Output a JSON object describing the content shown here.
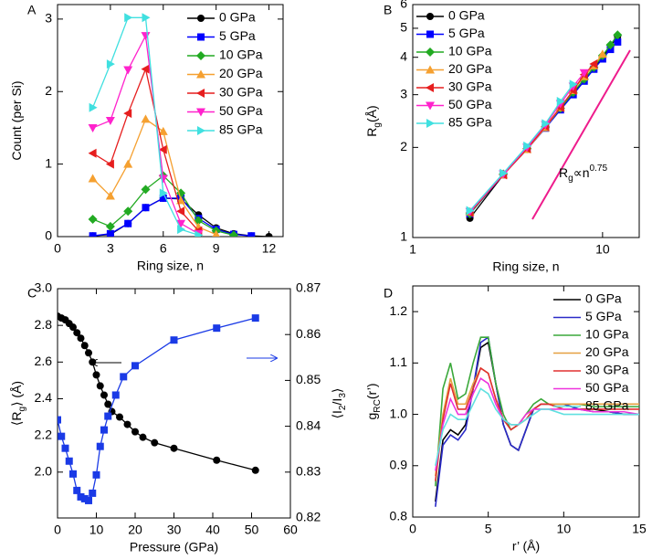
{
  "chart_data": [
    {
      "type": "line",
      "title": "A",
      "xlabel": "Ring size, n",
      "ylabel": [
        {
          "text": "Count (per Si)"
        }
      ],
      "xlim": [
        0,
        12.8
      ],
      "xticks": [
        0,
        3,
        6,
        9,
        12
      ],
      "ylim": [
        0,
        3.2
      ],
      "yticks": [
        0,
        1,
        2,
        3
      ],
      "legend": "upper right",
      "x": [
        2,
        3,
        4,
        5,
        6,
        7,
        8,
        9,
        10,
        11,
        12
      ],
      "series": [
        {
          "name": "0 GPa",
          "color": "#000000",
          "marker": "circle",
          "values": [
            0.01,
            0.03,
            0.18,
            0.4,
            0.53,
            0.52,
            0.3,
            0.12,
            0.04,
            0.01,
            0.0
          ]
        },
        {
          "name": "5 GPa",
          "color": "#0000ff",
          "marker": "square",
          "values": [
            0.01,
            0.04,
            0.18,
            0.4,
            0.53,
            0.53,
            0.25,
            0.1,
            0.03,
            0.01,
            null
          ]
        },
        {
          "name": "10 GPa",
          "color": "#22aa22",
          "marker": "diamond",
          "values": [
            0.24,
            0.14,
            0.35,
            0.65,
            0.84,
            0.6,
            0.22,
            0.08,
            0.02,
            null,
            null
          ]
        },
        {
          "name": "20 GPa",
          "color": "#f5a030",
          "marker": "tri-up",
          "values": [
            0.8,
            0.56,
            1.0,
            1.62,
            1.45,
            0.5,
            0.13,
            0.03,
            null,
            null,
            null
          ]
        },
        {
          "name": "30 GPa",
          "color": "#e61e1e",
          "marker": "tri-left",
          "values": [
            1.15,
            1.0,
            1.7,
            2.31,
            1.2,
            0.35,
            0.08,
            null,
            null,
            null,
            null
          ]
        },
        {
          "name": "50 GPa",
          "color": "#ff22cc",
          "marker": "tri-down",
          "values": [
            1.5,
            1.6,
            2.3,
            2.77,
            0.8,
            0.18,
            0.04,
            null,
            null,
            null,
            null
          ]
        },
        {
          "name": "85 GPa",
          "color": "#40e0e0",
          "marker": "tri-right",
          "values": [
            1.78,
            2.38,
            3.02,
            3.02,
            0.6,
            0.1,
            0.02,
            null,
            null,
            null,
            null
          ]
        }
      ]
    },
    {
      "type": "line",
      "title": "B",
      "xlabel": "Ring size, n",
      "ylabel": [
        {
          "text": "R"
        },
        {
          "text": "g",
          "shift": "sub"
        },
        {
          "text": "(Å)"
        }
      ],
      "xscale": "log",
      "yscale": "log",
      "xlim": [
        1,
        15.6
      ],
      "xticks": [
        1,
        10
      ],
      "ylim": [
        1,
        6
      ],
      "yticks": [
        1,
        2,
        3,
        4,
        5,
        6
      ],
      "legend": "upper left",
      "annotation": [
        {
          "text": "R"
        },
        {
          "text": "g",
          "shift": "sub"
        },
        {
          "text": "∝n"
        },
        {
          "text": "0.75",
          "shift": "super"
        }
      ],
      "annotation_color": "#ee1c8c",
      "x": [
        2,
        3,
        4,
        5,
        6,
        7,
        8,
        9,
        10,
        11,
        12
      ],
      "series": [
        {
          "name": "0 GPa",
          "color": "#000000",
          "marker": "circle",
          "values": [
            1.16,
            1.62,
            1.98,
            2.33,
            2.68,
            3.02,
            3.35,
            3.68,
            4.0,
            4.35,
            4.7
          ]
        },
        {
          "name": "5 GPa",
          "color": "#0000ff",
          "marker": "square",
          "values": [
            1.2,
            1.62,
            1.97,
            2.32,
            2.67,
            3.0,
            3.33,
            3.65,
            3.95,
            4.25,
            4.5
          ]
        },
        {
          "name": "10 GPa",
          "color": "#22aa22",
          "marker": "diamond",
          "values": [
            1.2,
            1.63,
            1.98,
            2.34,
            2.7,
            3.05,
            3.38,
            3.7,
            4.05,
            4.4,
            4.75
          ]
        },
        {
          "name": "20 GPa",
          "color": "#f5a030",
          "marker": "tri-up",
          "values": [
            1.22,
            1.62,
            1.97,
            2.33,
            2.72,
            3.1,
            3.45,
            3.75,
            4.1,
            null,
            null
          ]
        },
        {
          "name": "30 GPa",
          "color": "#e61e1e",
          "marker": "tri-left",
          "values": [
            1.21,
            1.62,
            1.98,
            2.35,
            2.72,
            3.1,
            3.5,
            3.8,
            null,
            null,
            null
          ]
        },
        {
          "name": "50 GPa",
          "color": "#ff22cc",
          "marker": "tri-down",
          "values": [
            1.22,
            1.63,
            2.0,
            2.38,
            2.8,
            3.2,
            3.55,
            null,
            null,
            null,
            null
          ]
        },
        {
          "name": "85 GPa",
          "color": "#40e0e0",
          "marker": "tri-right",
          "values": [
            1.23,
            1.64,
            2.02,
            2.4,
            2.85,
            3.25,
            null,
            null,
            null,
            null,
            null
          ]
        }
      ]
    },
    {
      "type": "line",
      "title": "C",
      "xlabel": "Pressure (GPa)",
      "ylabel": [
        {
          "text": "⟨R"
        },
        {
          "text": "g",
          "shift": "sub"
        },
        {
          "text": "⟩ (Å)"
        }
      ],
      "y2label": [
        {
          "text": "⟨I"
        },
        {
          "text": "2",
          "shift": "sub"
        },
        {
          "text": "/I"
        },
        {
          "text": "3",
          "shift": "sub"
        },
        {
          "text": "⟩"
        }
      ],
      "xlim": [
        0,
        60
      ],
      "xticks": [
        0,
        10,
        20,
        30,
        40,
        50,
        60
      ],
      "ylim": [
        1.75,
        3.0
      ],
      "yticks": [
        {
          "value": 2,
          "label": "2.0"
        },
        2.2,
        2.4,
        2.6,
        2.8,
        {
          "value": 3,
          "label": "3.0"
        }
      ],
      "y2lim": [
        0.82,
        0.87
      ],
      "y2ticks": [
        0.82,
        0.83,
        0.84,
        0.85,
        0.86,
        0.87
      ],
      "series": [
        {
          "color": "#000000",
          "marker": "circle",
          "x": [
            0,
            1,
            2,
            3,
            4,
            5,
            6,
            7,
            8,
            9,
            10,
            11,
            12,
            13,
            14,
            16,
            18,
            20,
            22,
            25,
            30,
            41,
            51
          ],
          "values": [
            2.85,
            2.84,
            2.83,
            2.81,
            2.79,
            2.76,
            2.73,
            2.69,
            2.65,
            2.6,
            2.53,
            2.47,
            2.42,
            2.37,
            2.33,
            2.3,
            2.26,
            2.22,
            2.19,
            2.16,
            2.13,
            2.065,
            2.01
          ]
        },
        {
          "color": "#1a3ae6",
          "marker": "square",
          "axis": "y2",
          "x": [
            0,
            1,
            2,
            3,
            4,
            5,
            6,
            7,
            8,
            9,
            10,
            11,
            12,
            13,
            15,
            17,
            20,
            30,
            41,
            51
          ],
          "values": [
            0.8414,
            0.8378,
            0.8352,
            0.8324,
            0.8296,
            0.826,
            0.8246,
            0.8242,
            0.8238,
            0.8254,
            0.8294,
            0.8356,
            0.8392,
            0.8422,
            0.8468,
            0.8508,
            0.8532,
            0.8588,
            0.8614,
            0.8636
          ]
        }
      ]
    },
    {
      "type": "line",
      "title": "D",
      "xlabel": "r’ (Å)",
      "ylabel": [
        {
          "text": "g"
        },
        {
          "text": "RC",
          "shift": "sub"
        },
        {
          "text": "(r’)"
        }
      ],
      "xlim": [
        0,
        15
      ],
      "xticks": [
        0,
        5,
        10,
        15
      ],
      "ylim": [
        0.8,
        1.25
      ],
      "yticks": [
        0.8,
        0.9,
        {
          "value": 1,
          "label": "1.0"
        },
        1.1,
        1.2
      ],
      "legend": "upper right",
      "x": [
        1.5,
        2,
        2.5,
        3,
        3.5,
        4,
        4.5,
        5,
        5.5,
        6,
        6.5,
        7,
        7.5,
        8,
        8.5,
        9,
        10,
        11,
        12,
        13,
        14,
        15
      ],
      "series": [
        {
          "name": "0 GPa",
          "color": "#000000",
          "values": [
            0.83,
            0.95,
            0.97,
            0.96,
            0.98,
            1.05,
            1.13,
            1.14,
            1.06,
            0.98,
            0.94,
            0.93,
            0.97,
            1.01,
            1.02,
            1.02,
            1.02,
            1.01,
            1.01,
            1.005,
            1.0,
            1.0
          ]
        },
        {
          "name": "5 GPa",
          "color": "#2a2ac8",
          "values": [
            0.82,
            0.94,
            0.96,
            0.95,
            0.97,
            1.05,
            1.14,
            1.15,
            1.06,
            0.98,
            0.94,
            0.93,
            0.97,
            1.01,
            1.02,
            1.02,
            1.02,
            1.01,
            1.005,
            1.005,
            1.0,
            1.0
          ]
        },
        {
          "name": "10 GPa",
          "color": "#3aa83a",
          "values": [
            0.86,
            1.05,
            1.1,
            1.03,
            1.04,
            1.1,
            1.15,
            1.15,
            1.06,
            1.0,
            0.97,
            0.98,
            1.0,
            1.02,
            1.03,
            1.02,
            1.02,
            1.02,
            1.015,
            1.015,
            1.015,
            1.015
          ]
        },
        {
          "name": "20 GPa",
          "color": "#e6a040",
          "values": [
            0.88,
            1.0,
            1.07,
            1.02,
            1.02,
            1.06,
            1.09,
            1.08,
            1.03,
            0.99,
            0.98,
            0.98,
            1.0,
            1.01,
            1.02,
            1.02,
            1.02,
            1.02,
            1.02,
            1.02,
            1.02,
            1.02
          ]
        },
        {
          "name": "30 GPa",
          "color": "#e03030",
          "values": [
            0.87,
            0.99,
            1.06,
            1.01,
            1.01,
            1.05,
            1.09,
            1.08,
            1.03,
            0.99,
            0.97,
            0.98,
            0.99,
            1.01,
            1.02,
            1.02,
            1.01,
            1.01,
            1.01,
            1.01,
            1.01,
            1.01
          ]
        },
        {
          "name": "50 GPa",
          "color": "#ee33dd",
          "values": [
            0.89,
            0.98,
            1.03,
            1.0,
            1.0,
            1.04,
            1.07,
            1.06,
            1.02,
            0.99,
            0.98,
            0.98,
            1.0,
            1.01,
            1.01,
            1.01,
            1.01,
            1.01,
            1.005,
            1.005,
            1.005,
            1.0
          ]
        },
        {
          "name": "85 GPa",
          "color": "#60e0e0",
          "values": [
            0.9,
            0.97,
            1.0,
            0.99,
            0.99,
            1.02,
            1.05,
            1.04,
            1.01,
            0.99,
            0.98,
            0.98,
            0.99,
            1.0,
            1.01,
            1.01,
            1.0,
            1.0,
            1.0,
            1.0,
            1.0,
            1.0
          ]
        }
      ]
    }
  ]
}
